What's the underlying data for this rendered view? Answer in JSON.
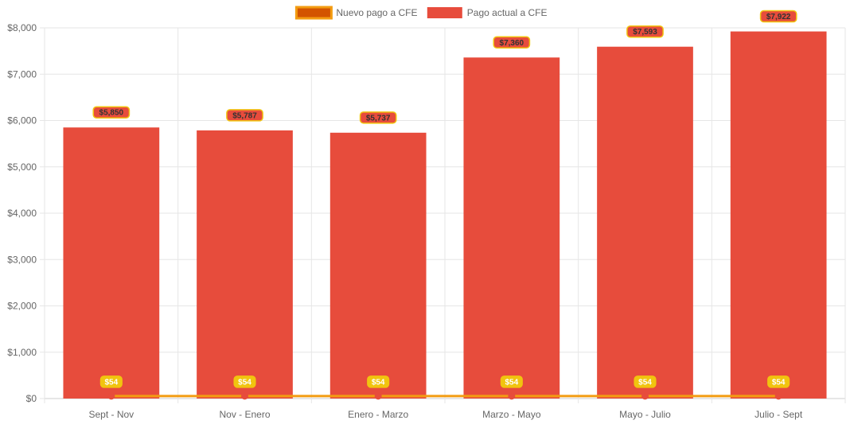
{
  "chart_data": {
    "type": "bar",
    "title": "",
    "xlabel": "",
    "ylabel": "",
    "ylim": [
      0,
      8000
    ],
    "y_step": 1000,
    "y_tick_prefix": "$",
    "grid": true,
    "legend_position": "top",
    "categories": [
      "Sept - Nov",
      "Nov - Enero",
      "Enero - Marzo",
      "Marzo - Mayo",
      "Mayo - Julio",
      "Julio - Sept"
    ],
    "series": [
      {
        "name": "Nuevo pago a CFE",
        "kind": "line",
        "values": [
          54,
          54,
          54,
          54,
          54,
          54
        ],
        "labels": [
          "$54",
          "$54",
          "$54",
          "$54",
          "$54",
          "$54"
        ],
        "color": "#f39c12",
        "legend_fill": "#d35400",
        "point_color": "#e74c3c",
        "label_bg": "#f1c40f",
        "label_text_color": "#ffffff"
      },
      {
        "name": "Pago actual a CFE",
        "kind": "bar",
        "values": [
          5850,
          5787,
          5737,
          7360,
          7593,
          7922
        ],
        "labels": [
          "$5,850",
          "$5,787",
          "$5,737",
          "$7,360",
          "$7,593",
          "$7,922"
        ],
        "color": "#e74c3c",
        "label_bg": "#e74c3c",
        "label_border": "#f1c40f",
        "label_text_color": "#333333"
      }
    ]
  }
}
